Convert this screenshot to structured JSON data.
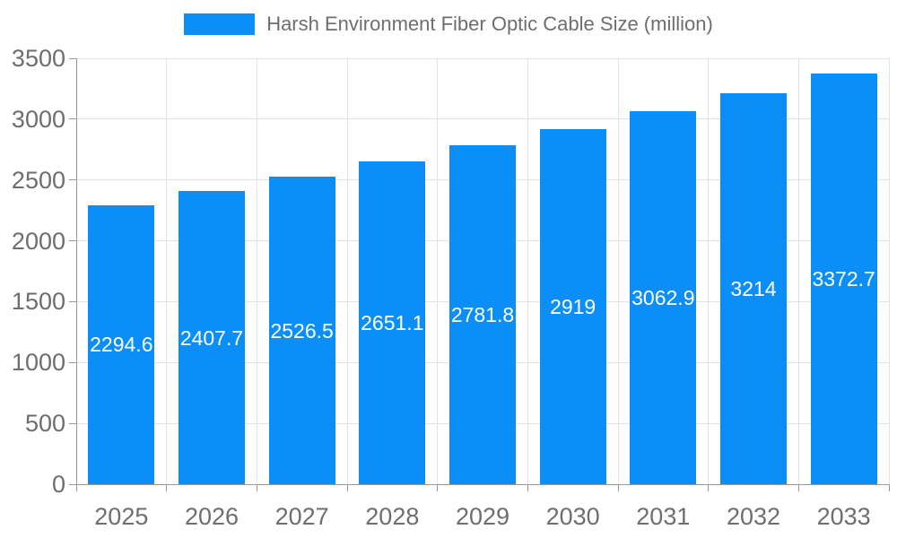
{
  "legend": {
    "label": "Harsh Environment Fiber Optic Cable Size (million)",
    "swatch_color": "#0b8ef8"
  },
  "chart_data": {
    "type": "bar",
    "title": "Harsh Environment Fiber Optic Cable Size (million)",
    "categories": [
      "2025",
      "2026",
      "2027",
      "2028",
      "2029",
      "2030",
      "2031",
      "2032",
      "2033"
    ],
    "series": [
      {
        "name": "Harsh Environment Fiber Optic Cable Size (million)",
        "values": [
          2294.6,
          2407.7,
          2526.5,
          2651.1,
          2781.8,
          2919,
          3062.9,
          3214,
          3372.7
        ]
      }
    ],
    "value_labels": [
      "2294.6",
      "2407.7",
      "2526.5",
      "2651.1",
      "2781.8",
      "2919",
      "3062.9",
      "3214",
      "3372.7"
    ],
    "xlabel": "",
    "ylabel": "",
    "ylim": [
      0,
      3500
    ],
    "yticks": [
      0,
      500,
      1000,
      1500,
      2000,
      2500,
      3000,
      3500
    ],
    "grid": true,
    "legend_position": "top",
    "bar_color": "#0b8ef8",
    "value_label_color": "#ffffff",
    "axis_text_color": "#6e6e6e",
    "axis_line_color": "#999999",
    "gridline_color": "#e3e3e3",
    "background_color": "#ffffff"
  }
}
